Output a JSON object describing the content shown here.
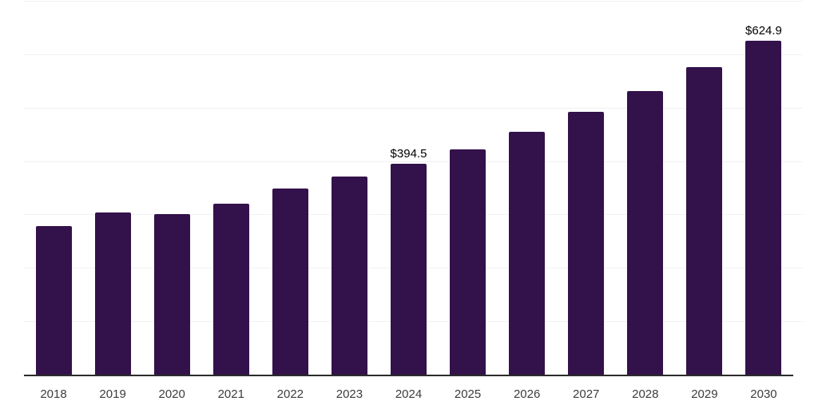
{
  "chart_data": {
    "type": "bar",
    "title": "",
    "xlabel": "",
    "ylabel": "",
    "categories": [
      "2018",
      "2019",
      "2020",
      "2021",
      "2022",
      "2023",
      "2024",
      "2025",
      "2026",
      "2027",
      "2028",
      "2029",
      "2030"
    ],
    "values": [
      278,
      304,
      300,
      320,
      348,
      371,
      394.5,
      422,
      455,
      492,
      531,
      576,
      624.9
    ],
    "bar_labels": [
      "",
      "",
      "",
      "",
      "",
      "",
      "$394.5",
      "",
      "",
      "",
      "",
      "",
      "$624.9"
    ],
    "ylim": [
      0,
      700
    ],
    "gridline_step": 100,
    "grid": "horizontal-only",
    "legend": "none",
    "colors": {
      "bar": "#33114a",
      "grid": "#f1f1f1",
      "axis": "#2b2b2b",
      "tick_label": "#3c3c3c",
      "data_label": "#000000"
    }
  }
}
